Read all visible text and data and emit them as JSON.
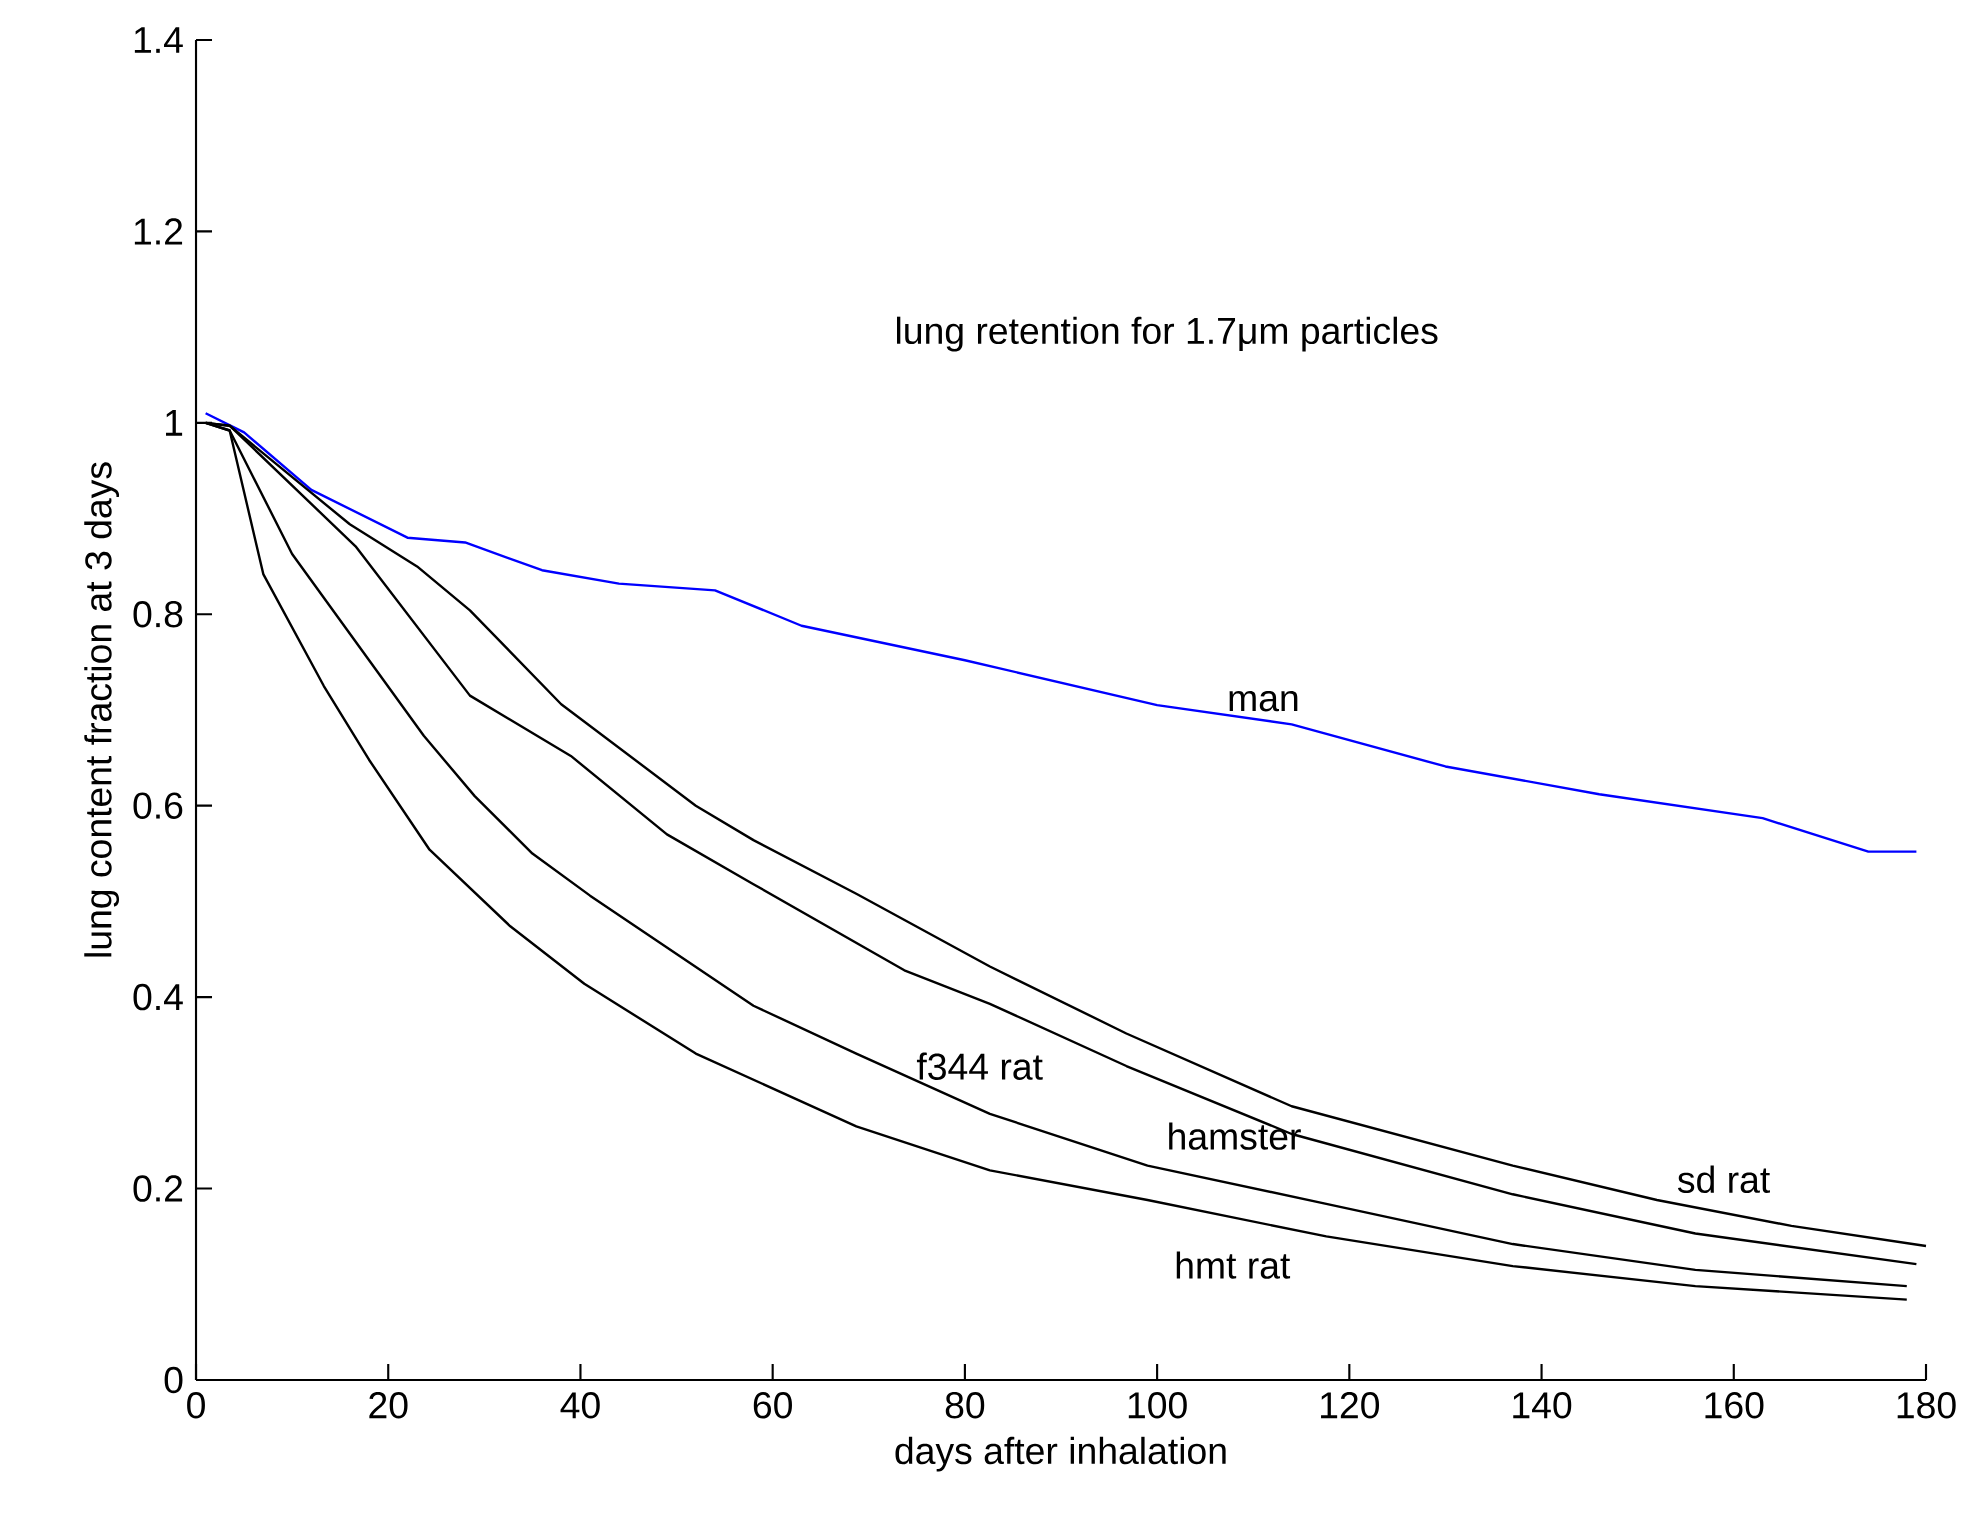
{
  "chart_data": {
    "type": "line",
    "title": "lung retention for 1.7μm particles",
    "xlabel": "days after inhalation",
    "ylabel": "lung content fraction at 3 days",
    "xlim": [
      0,
      180
    ],
    "ylim": [
      0,
      1.4
    ],
    "xticks": [
      0,
      20,
      40,
      60,
      80,
      100,
      120,
      140,
      160,
      180
    ],
    "yticks": [
      0,
      0.2,
      0.4,
      0.6,
      0.8,
      1,
      1.2,
      1.4
    ],
    "grid": false,
    "legend": false,
    "marker": "none",
    "line_style": "solid",
    "series": [
      {
        "name": "man",
        "color": "#0000ff",
        "x": [
          1,
          5,
          12,
          22,
          28,
          36,
          44,
          54,
          63,
          80,
          100,
          114,
          130,
          146,
          163,
          174,
          179
        ],
        "values": [
          1.01,
          0.99,
          0.93,
          0.88,
          0.875,
          0.846,
          0.832,
          0.825,
          0.788,
          0.752,
          0.705,
          0.685,
          0.641,
          0.612,
          0.587,
          0.552,
          0.552
        ]
      },
      {
        "name": "sd rat",
        "color": "#000000",
        "x": [
          1,
          3.5,
          16,
          23,
          28.5,
          38,
          52,
          58,
          68.7,
          82.6,
          96.8,
          114,
          137,
          152,
          166,
          180
        ],
        "values": [
          1.0,
          0.997,
          0.894,
          0.85,
          0.804,
          0.706,
          0.6,
          0.564,
          0.508,
          0.432,
          0.362,
          0.286,
          0.224,
          0.188,
          0.161,
          0.14
        ]
      },
      {
        "name": "hamster",
        "color": "#000000",
        "x": [
          1,
          3.5,
          16.6,
          28.5,
          39,
          49,
          58,
          73.7,
          82.6,
          96.8,
          114,
          137,
          156,
          179
        ],
        "values": [
          1.0,
          0.997,
          0.871,
          0.715,
          0.652,
          0.57,
          0.518,
          0.428,
          0.393,
          0.328,
          0.257,
          0.194,
          0.153,
          0.121
        ]
      },
      {
        "name": "f344 rat",
        "color": "#000000",
        "x": [
          1,
          3.5,
          10,
          23.7,
          29,
          35,
          41,
          58,
          68.7,
          82.6,
          99,
          117.6,
          137,
          156,
          178
        ],
        "values": [
          1.0,
          0.992,
          0.863,
          0.673,
          0.61,
          0.55,
          0.506,
          0.391,
          0.341,
          0.278,
          0.224,
          0.184,
          0.142,
          0.115,
          0.098
        ]
      },
      {
        "name": "hmt rat",
        "color": "#000000",
        "x": [
          1,
          3.5,
          7,
          13.3,
          18,
          24.3,
          32.7,
          40.4,
          52,
          68.7,
          82.6,
          99,
          117.6,
          137,
          156,
          178
        ],
        "values": [
          1.0,
          0.992,
          0.842,
          0.725,
          0.648,
          0.554,
          0.474,
          0.414,
          0.341,
          0.265,
          0.219,
          0.188,
          0.15,
          0.119,
          0.098,
          0.084
        ]
      }
    ]
  }
}
